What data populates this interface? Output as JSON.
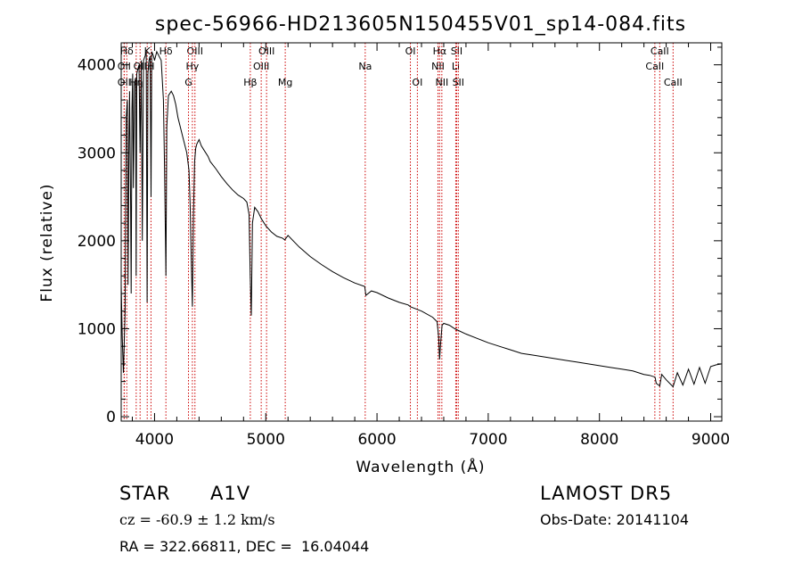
{
  "chart_data": {
    "type": "line",
    "title": "spec-56966-HD213605N150455V01_sp14-084.fits",
    "xlabel": "Wavelength (Å)",
    "ylabel": "Flux (relative)",
    "xlim": [
      3700,
      9100
    ],
    "ylim": [
      -50,
      4250
    ],
    "xticks": [
      4000,
      5000,
      6000,
      7000,
      8000,
      9000
    ],
    "yticks": [
      0,
      1000,
      2000,
      3000,
      4000
    ],
    "grid": false,
    "legend": "none",
    "series": [
      {
        "color": "#000000",
        "x": [
          3700,
          3710,
          3720,
          3735,
          3745,
          3755,
          3762,
          3770,
          3775,
          3785,
          3790,
          3797,
          3803,
          3810,
          3820,
          3830,
          3835,
          3840,
          3850,
          3860,
          3870,
          3880,
          3890,
          3900,
          3915,
          3925,
          3933,
          3940,
          3950,
          3960,
          3968,
          3975,
          3990,
          4000,
          4020,
          4040,
          4060,
          4080,
          4090,
          4102,
          4110,
          4125,
          4150,
          4170,
          4190,
          4210,
          4230,
          4250,
          4270,
          4290,
          4310,
          4320,
          4330,
          4340,
          4350,
          4360,
          4370,
          4380,
          4400,
          4420,
          4450,
          4480,
          4500,
          4550,
          4600,
          4650,
          4700,
          4750,
          4800,
          4830,
          4850,
          4860,
          4870,
          4880,
          4900,
          4930,
          4960,
          5000,
          5050,
          5100,
          5150,
          5170,
          5200,
          5300,
          5400,
          5500,
          5600,
          5700,
          5800,
          5890,
          5900,
          5950,
          6000,
          6100,
          6200,
          6280,
          6300,
          6400,
          6500,
          6540,
          6555,
          6563,
          6570,
          6585,
          6600,
          6650,
          6700,
          6800,
          6900,
          7000,
          7100,
          7200,
          7300,
          7400,
          7500,
          7600,
          7700,
          7800,
          7900,
          8000,
          8100,
          8200,
          8300,
          8400,
          8450,
          8500,
          8510,
          8542,
          8560,
          8600,
          8662,
          8700,
          8750,
          8800,
          8850,
          8900,
          8950,
          9000,
          9050,
          9100
        ],
        "values": [
          1500,
          900,
          500,
          1200,
          3400,
          3600,
          1500,
          3100,
          3700,
          2400,
          1400,
          3500,
          3900,
          2600,
          3800,
          3850,
          1600,
          3900,
          3950,
          4000,
          3000,
          4050,
          2000,
          4050,
          4100,
          4150,
          1300,
          3900,
          4050,
          4100,
          2500,
          4150,
          4100,
          4050,
          4150,
          4100,
          4050,
          3600,
          2800,
          1600,
          3300,
          3650,
          3700,
          3650,
          3550,
          3400,
          3300,
          3200,
          3100,
          3000,
          2800,
          2400,
          1800,
          1250,
          2300,
          2900,
          3050,
          3100,
          3150,
          3080,
          3020,
          2960,
          2900,
          2820,
          2730,
          2650,
          2580,
          2520,
          2480,
          2440,
          2300,
          1600,
          1150,
          2200,
          2380,
          2330,
          2250,
          2170,
          2100,
          2050,
          2030,
          2010,
          2060,
          1930,
          1820,
          1730,
          1650,
          1580,
          1520,
          1480,
          1380,
          1430,
          1410,
          1350,
          1300,
          1270,
          1250,
          1200,
          1130,
          1080,
          900,
          650,
          800,
          1040,
          1060,
          1040,
          1000,
          940,
          890,
          840,
          800,
          760,
          720,
          700,
          680,
          660,
          640,
          620,
          600,
          580,
          560,
          540,
          520,
          480,
          470,
          450,
          380,
          350,
          480,
          420,
          340,
          500,
          360,
          540,
          370,
          560,
          380,
          570,
          590,
          600
        ]
      }
    ],
    "line_markers": [
      {
        "label": "Hδ",
        "x": 3750,
        "row": 1
      },
      {
        "label": "OII",
        "x": 3727,
        "row": 2
      },
      {
        "label": "OII",
        "x": 3727,
        "row": 3
      },
      {
        "label": "Hη",
        "x": 3835,
        "row": 3
      },
      {
        "label": "K",
        "x": 3934,
        "row": 1
      },
      {
        "label": "H",
        "x": 3968,
        "row": 2
      },
      {
        "label": "Hδ",
        "x": 4102,
        "row": 1
      },
      {
        "label": "OII",
        "x": 3870,
        "row": 2
      },
      {
        "label": "OIII",
        "x": 4363,
        "row": 1
      },
      {
        "label": "Hγ",
        "x": 4340,
        "row": 2
      },
      {
        "label": "G",
        "x": 4305,
        "row": 3
      },
      {
        "label": "Hβ",
        "x": 4861,
        "row": 3
      },
      {
        "label": "OIII",
        "x": 5007,
        "row": 1
      },
      {
        "label": "OIII",
        "x": 4959,
        "row": 2
      },
      {
        "label": "Mg",
        "x": 5175,
        "row": 3
      },
      {
        "label": "Na",
        "x": 5894,
        "row": 2
      },
      {
        "label": "OI",
        "x": 6300,
        "row": 1
      },
      {
        "label": "OI",
        "x": 6363,
        "row": 3
      },
      {
        "label": "Hα",
        "x": 6563,
        "row": 1
      },
      {
        "label": "NII",
        "x": 6548,
        "row": 2
      },
      {
        "label": "NII",
        "x": 6583,
        "row": 3
      },
      {
        "label": "SII",
        "x": 6716,
        "row": 1
      },
      {
        "label": "Li",
        "x": 6708,
        "row": 2
      },
      {
        "label": "SII",
        "x": 6731,
        "row": 3
      },
      {
        "label": "CaII",
        "x": 8542,
        "row": 1
      },
      {
        "label": "CaII",
        "x": 8498,
        "row": 2
      },
      {
        "label": "CaII",
        "x": 8662,
        "row": 3
      }
    ]
  },
  "info": {
    "object_class": "STAR",
    "subclass": "A1V",
    "survey": "LAMOST DR5",
    "redshift": "cz = -60.9 ± 1.2 km/s",
    "obs_date": "Obs-Date: 20141104",
    "coords": "RA = 322.66811, DEC =  16.04044"
  },
  "colors": {
    "spectrum": "#000000",
    "marker_line": "#cc0000",
    "axes": "#000000"
  }
}
